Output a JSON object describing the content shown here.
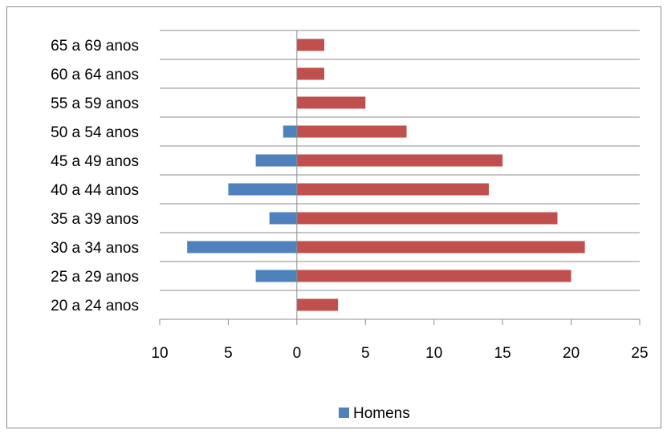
{
  "chart_data": {
    "type": "bar",
    "orientation": "horizontal",
    "categories": [
      "20 a 24 anos",
      "25 a 29 anos",
      "30 a 34 anos",
      "35 a 39 anos",
      "40 a 44 anos",
      "45 a 49 anos",
      "50 a 54 anos",
      "55 a 59 anos",
      "60 a 64 anos",
      "65 a 69 anos"
    ],
    "series": [
      {
        "name": "Homens",
        "values": [
          0,
          -3,
          -8,
          -2,
          -5,
          -3,
          -1,
          0,
          0,
          0
        ],
        "color": "#4f81bd"
      },
      {
        "values": [
          3,
          20,
          21,
          19,
          14,
          15,
          8,
          5,
          2,
          2
        ],
        "color": "#c0504d"
      }
    ],
    "xlim": [
      -10,
      25
    ],
    "xticks": [
      -10,
      -5,
      0,
      5,
      10,
      15,
      20,
      25
    ],
    "xtick_labels": [
      "10",
      "5",
      "0",
      "5",
      "10",
      "15",
      "20",
      "25"
    ],
    "grid": "horizontal gridlines between categories",
    "legend_position": "bottom",
    "legend": [
      "Homens"
    ],
    "title": "",
    "xlabel": "",
    "ylabel": ""
  }
}
